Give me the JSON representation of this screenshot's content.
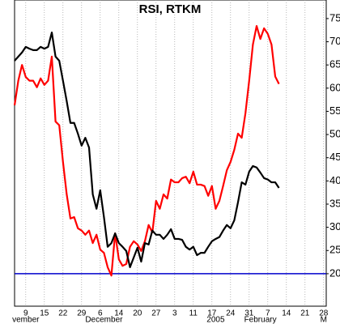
{
  "chart_data": {
    "type": "line",
    "title": "RSI, RTKM",
    "categories": [
      null,
      null,
      null,
      "9",
      null,
      null,
      null,
      null,
      "15",
      null,
      null,
      null,
      null,
      "22",
      null,
      null,
      null,
      null,
      "29",
      null,
      null,
      null,
      null,
      "6",
      null,
      null,
      null,
      null,
      "14",
      null,
      null,
      null,
      null,
      "20",
      null,
      null,
      null,
      null,
      "27",
      null,
      null,
      null,
      null,
      "3",
      null,
      null,
      null,
      null,
      "11",
      null,
      null,
      null,
      null,
      "17",
      null,
      null,
      null,
      null,
      "24",
      null,
      null,
      null,
      null,
      "31",
      null,
      null,
      null,
      null,
      "7",
      null,
      null,
      null,
      null,
      "14",
      null,
      null,
      null,
      null,
      "21",
      null,
      null,
      null,
      null,
      "28"
    ],
    "month_categories": [
      null,
      null,
      null,
      "vember",
      null,
      null,
      null,
      null,
      null,
      null,
      null,
      null,
      null,
      null,
      null,
      null,
      null,
      null,
      null,
      null,
      null,
      null,
      null,
      null,
      "December",
      null,
      null,
      null,
      null,
      null,
      null,
      null,
      null,
      null,
      null,
      null,
      null,
      null,
      null,
      null,
      null,
      null,
      null,
      null,
      null,
      null,
      null,
      null,
      null,
      null,
      null,
      null,
      null,
      null,
      "2005",
      null,
      null,
      null,
      null,
      null,
      null,
      null,
      null,
      null,
      null,
      null,
      "February",
      null,
      null,
      null,
      null,
      null,
      null,
      null,
      null,
      null,
      null,
      null,
      null,
      null,
      null,
      null,
      null,
      "M"
    ],
    "series": [
      {
        "color": "#ff0000",
        "values": [
          56.3,
          61.6,
          65,
          62.4,
          61.6,
          61.6,
          60.2,
          62.1,
          60.7,
          61.6,
          66.8,
          52.8,
          52,
          44.1,
          37.1,
          31.9,
          32.2,
          29.8,
          29.3,
          28.4,
          29.3,
          26.6,
          28.4,
          25.2,
          24.5,
          21.4,
          19.6,
          28.7,
          23.1,
          21.7,
          22.1,
          25.8,
          27,
          26.3,
          24.9,
          27,
          30.5,
          28.9,
          35.7,
          34,
          37.1,
          36.2,
          40.3,
          39.7,
          39.7,
          40.6,
          40.9,
          39.5,
          42,
          39.2,
          39.2,
          38.9,
          36.8,
          38.9,
          34,
          35.7,
          38.9,
          42.3,
          44.1,
          46.7,
          50.2,
          49.3,
          54.6,
          61.6,
          69.4,
          73.4,
          70.6,
          72.9,
          71.7,
          69.4,
          62.5,
          60.9,
          null,
          null,
          null,
          null,
          null,
          null,
          null,
          null,
          null,
          null,
          null,
          null
        ]
      },
      {
        "color": "#000000",
        "values": [
          65.9,
          66.8,
          67.7,
          68.9,
          68.5,
          68.2,
          68.2,
          68.9,
          68.5,
          68.9,
          72,
          66.8,
          65.9,
          61.6,
          57.2,
          52.5,
          52.5,
          50.2,
          47.6,
          49.3,
          47.2,
          37.1,
          34,
          38,
          32.2,
          25.8,
          26.6,
          28.7,
          26.6,
          25.8,
          24.9,
          21.4,
          23.5,
          25.6,
          22.6,
          26.6,
          26.3,
          29.3,
          28.4,
          28.4,
          27.5,
          28.4,
          29.6,
          27.5,
          27.5,
          27.3,
          25.8,
          25.2,
          25.8,
          24,
          24.5,
          24.5,
          25.8,
          27,
          27.5,
          27.9,
          29.3,
          30.5,
          29.8,
          31.5,
          35.4,
          39.7,
          39.2,
          42,
          43.2,
          42.9,
          41.8,
          40.6,
          40.3,
          39.7,
          39.7,
          38.5,
          null,
          null,
          null,
          null,
          null,
          null,
          null,
          null,
          null,
          null,
          null,
          null
        ]
      }
    ],
    "ylim": [
      13,
      79
    ],
    "yticks": [
      20,
      25,
      30,
      35,
      40,
      45,
      50,
      55,
      60,
      65,
      70,
      75
    ],
    "reference_line": {
      "value": 20,
      "color": "#0000cc"
    },
    "grid": true
  }
}
